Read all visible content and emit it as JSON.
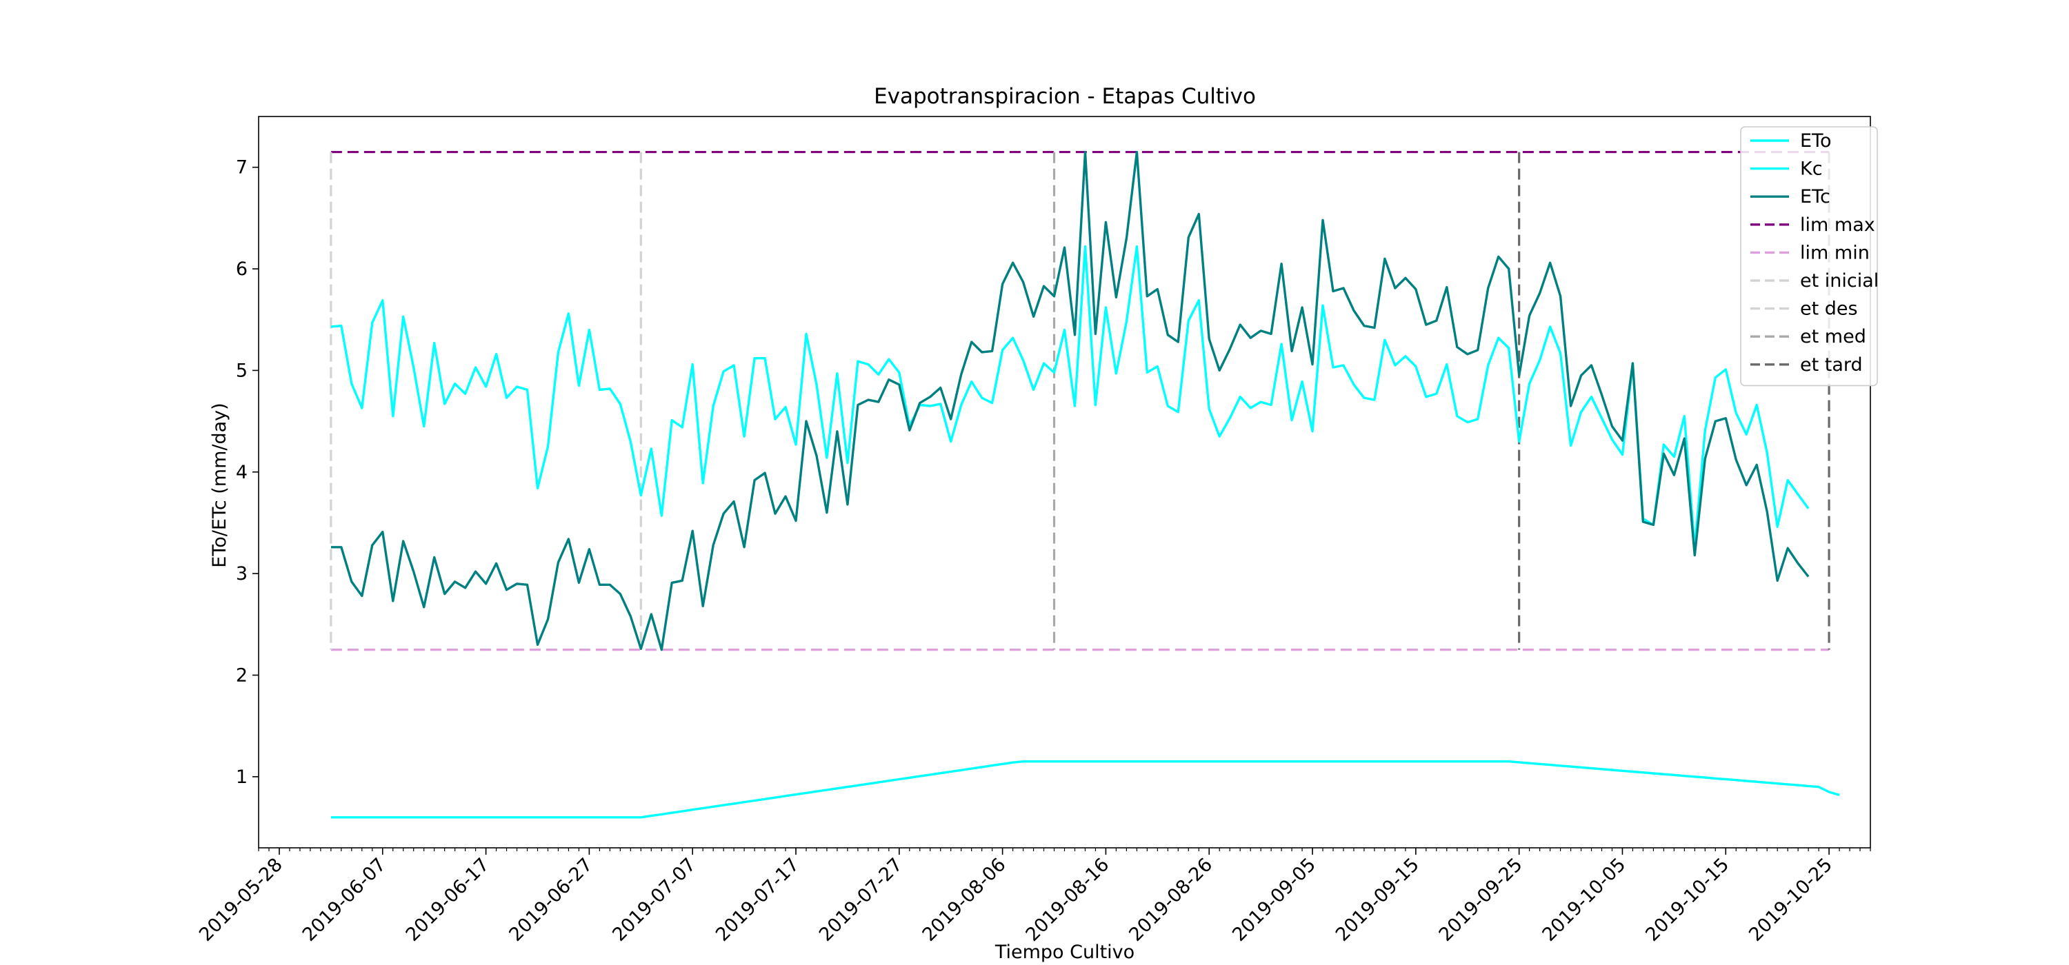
{
  "chart_data": {
    "type": "line",
    "title": "Evapotranspiracion - Etapas Cultivo",
    "xlabel": "Tiempo Cultivo",
    "ylabel": "ETo/ETc (mm/day)",
    "xlim": [
      "2019-05-26",
      "2019-10-29"
    ],
    "ylim": [
      0.3,
      7.5
    ],
    "x_ticks": [
      "2019-05-28",
      "2019-06-07",
      "2019-06-17",
      "2019-06-27",
      "2019-07-07",
      "2019-07-17",
      "2019-07-27",
      "2019-08-06",
      "2019-08-16",
      "2019-08-26",
      "2019-09-05",
      "2019-09-15",
      "2019-09-25",
      "2019-10-05",
      "2019-10-15",
      "2019-10-25"
    ],
    "y_ticks": [
      1,
      2,
      3,
      4,
      5,
      6,
      7
    ],
    "grid": false,
    "legend_position": "top-right",
    "x_start": "2019-06-02",
    "x_end": "2019-10-24",
    "series": [
      {
        "name": "ETo",
        "color": "#00ffff",
        "style": "solid",
        "values": [
          5.43,
          5.44,
          4.87,
          4.63,
          5.47,
          5.69,
          4.55,
          5.53,
          5.03,
          4.45,
          5.27,
          4.67,
          4.87,
          4.77,
          5.03,
          4.84,
          5.16,
          4.73,
          4.84,
          4.81,
          3.84,
          4.25,
          5.18,
          5.56,
          4.85,
          5.4,
          4.81,
          4.82,
          4.67,
          4.3,
          3.77,
          4.23,
          3.57,
          4.51,
          4.44,
          5.06,
          3.89,
          4.65,
          4.99,
          5.05,
          4.35,
          5.12,
          5.12,
          4.52,
          4.64,
          4.27,
          5.36,
          4.86,
          4.14,
          4.97,
          4.09,
          5.09,
          5.06,
          4.96,
          5.11,
          4.98,
          4.45,
          4.66,
          4.65,
          4.67,
          4.3,
          4.66,
          4.89,
          4.73,
          4.68,
          5.2,
          5.32,
          5.1,
          4.81,
          5.07,
          4.98,
          5.4,
          4.65,
          6.22,
          4.66,
          5.62,
          4.97,
          5.48,
          6.22,
          4.98,
          5.04,
          4.65,
          4.59,
          5.49,
          5.69,
          4.62,
          4.35,
          4.53,
          4.74,
          4.63,
          4.69,
          4.66,
          5.26,
          4.51,
          4.89,
          4.4,
          5.64,
          5.03,
          5.05,
          4.86,
          4.73,
          4.71,
          5.3,
          5.05,
          5.14,
          5.04,
          4.74,
          4.77,
          5.06,
          4.55,
          4.49,
          4.52,
          5.05,
          5.32,
          5.22,
          4.3,
          4.87,
          5.1,
          5.43,
          5.17,
          4.26,
          4.59,
          4.74,
          4.53,
          4.32,
          4.17,
          5.07,
          3.54,
          3.48,
          4.27,
          4.15,
          4.55,
          3.25,
          4.41,
          4.93,
          5.01,
          4.58,
          4.37,
          4.66,
          4.19,
          3.46,
          3.92,
          3.78,
          3.64
        ]
      },
      {
        "name": "Kc",
        "color": "#00ffff",
        "style": "solid",
        "values": [
          0.6,
          0.6,
          0.6,
          0.6,
          0.6,
          0.6,
          0.6,
          0.6,
          0.6,
          0.6,
          0.6,
          0.6,
          0.6,
          0.6,
          0.6,
          0.6,
          0.6,
          0.6,
          0.6,
          0.6,
          0.6,
          0.6,
          0.6,
          0.6,
          0.6,
          0.6,
          0.6,
          0.6,
          0.6,
          0.6,
          0.6,
          0.615,
          0.63,
          0.645,
          0.66,
          0.675,
          0.69,
          0.705,
          0.72,
          0.735,
          0.75,
          0.765,
          0.78,
          0.795,
          0.81,
          0.825,
          0.84,
          0.855,
          0.87,
          0.885,
          0.9,
          0.915,
          0.93,
          0.945,
          0.96,
          0.975,
          0.99,
          1.005,
          1.02,
          1.035,
          1.05,
          1.065,
          1.08,
          1.095,
          1.11,
          1.125,
          1.14,
          1.15,
          1.15,
          1.15,
          1.15,
          1.15,
          1.15,
          1.15,
          1.15,
          1.15,
          1.15,
          1.15,
          1.15,
          1.15,
          1.15,
          1.15,
          1.15,
          1.15,
          1.15,
          1.15,
          1.15,
          1.15,
          1.15,
          1.15,
          1.15,
          1.15,
          1.15,
          1.15,
          1.15,
          1.15,
          1.15,
          1.15,
          1.15,
          1.15,
          1.15,
          1.15,
          1.15,
          1.15,
          1.15,
          1.15,
          1.15,
          1.15,
          1.15,
          1.15,
          1.15,
          1.15,
          1.15,
          1.15,
          1.15,
          1.142,
          1.133,
          1.125,
          1.117,
          1.108,
          1.1,
          1.092,
          1.083,
          1.075,
          1.067,
          1.058,
          1.05,
          1.042,
          1.033,
          1.025,
          1.017,
          1.008,
          1.0,
          0.992,
          0.983,
          0.975,
          0.967,
          0.958,
          0.95,
          0.942,
          0.933,
          0.925,
          0.917,
          0.908,
          0.9,
          0.85,
          0.82
        ]
      },
      {
        "name": "ETc",
        "color": "#008080",
        "style": "solid",
        "values": [
          3.26,
          3.26,
          2.92,
          2.78,
          3.28,
          3.41,
          2.73,
          3.32,
          3.02,
          2.67,
          3.16,
          2.8,
          2.92,
          2.86,
          3.02,
          2.9,
          3.1,
          2.84,
          2.9,
          2.89,
          2.3,
          2.55,
          3.11,
          3.34,
          2.91,
          3.24,
          2.89,
          2.89,
          2.8,
          2.58,
          2.26,
          2.6,
          2.25,
          2.91,
          2.93,
          3.42,
          2.68,
          3.28,
          3.59,
          3.71,
          3.26,
          3.92,
          3.99,
          3.59,
          3.76,
          3.52,
          4.5,
          4.16,
          3.6,
          4.4,
          3.68,
          4.66,
          4.71,
          4.69,
          4.91,
          4.86,
          4.41,
          4.68,
          4.74,
          4.83,
          4.52,
          4.96,
          5.28,
          5.18,
          5.19,
          5.85,
          6.06,
          5.87,
          5.53,
          5.83,
          5.73,
          6.21,
          5.35,
          7.15,
          5.36,
          6.46,
          5.72,
          6.3,
          7.15,
          5.73,
          5.8,
          5.35,
          5.28,
          6.31,
          6.54,
          5.31,
          5.0,
          5.21,
          5.45,
          5.32,
          5.39,
          5.36,
          6.05,
          5.19,
          5.62,
          5.06,
          6.48,
          5.78,
          5.81,
          5.59,
          5.44,
          5.42,
          6.1,
          5.81,
          5.91,
          5.8,
          5.45,
          5.49,
          5.82,
          5.23,
          5.16,
          5.2,
          5.81,
          6.12,
          6.0,
          4.95,
          5.54,
          5.76,
          6.06,
          5.73,
          4.65,
          4.95,
          5.05,
          4.76,
          4.45,
          4.31,
          5.07,
          3.51,
          3.48,
          4.18,
          3.97,
          4.33,
          3.18,
          4.13,
          4.5,
          4.53,
          4.12,
          3.87,
          4.07,
          3.61,
          2.93,
          3.25,
          3.1,
          2.97
        ]
      },
      {
        "name": "lim max",
        "color": "#800080",
        "style": "dashed",
        "constant": 7.15
      },
      {
        "name": "lim min",
        "color": "#dda0dd",
        "style": "dashed",
        "constant": 2.25
      }
    ],
    "stage_lines": [
      {
        "name": "et inicial",
        "date": "2019-06-02",
        "color": "#d3d3d3"
      },
      {
        "name": "et des",
        "date": "2019-07-02",
        "color": "#d3d3d3"
      },
      {
        "name": "et med",
        "date": "2019-08-11",
        "color": "#a9a9a9"
      },
      {
        "name": "et tard",
        "date": "2019-09-25",
        "color": "#696969"
      },
      {
        "name": "",
        "date": "2019-10-25",
        "color": "#696969"
      }
    ]
  }
}
